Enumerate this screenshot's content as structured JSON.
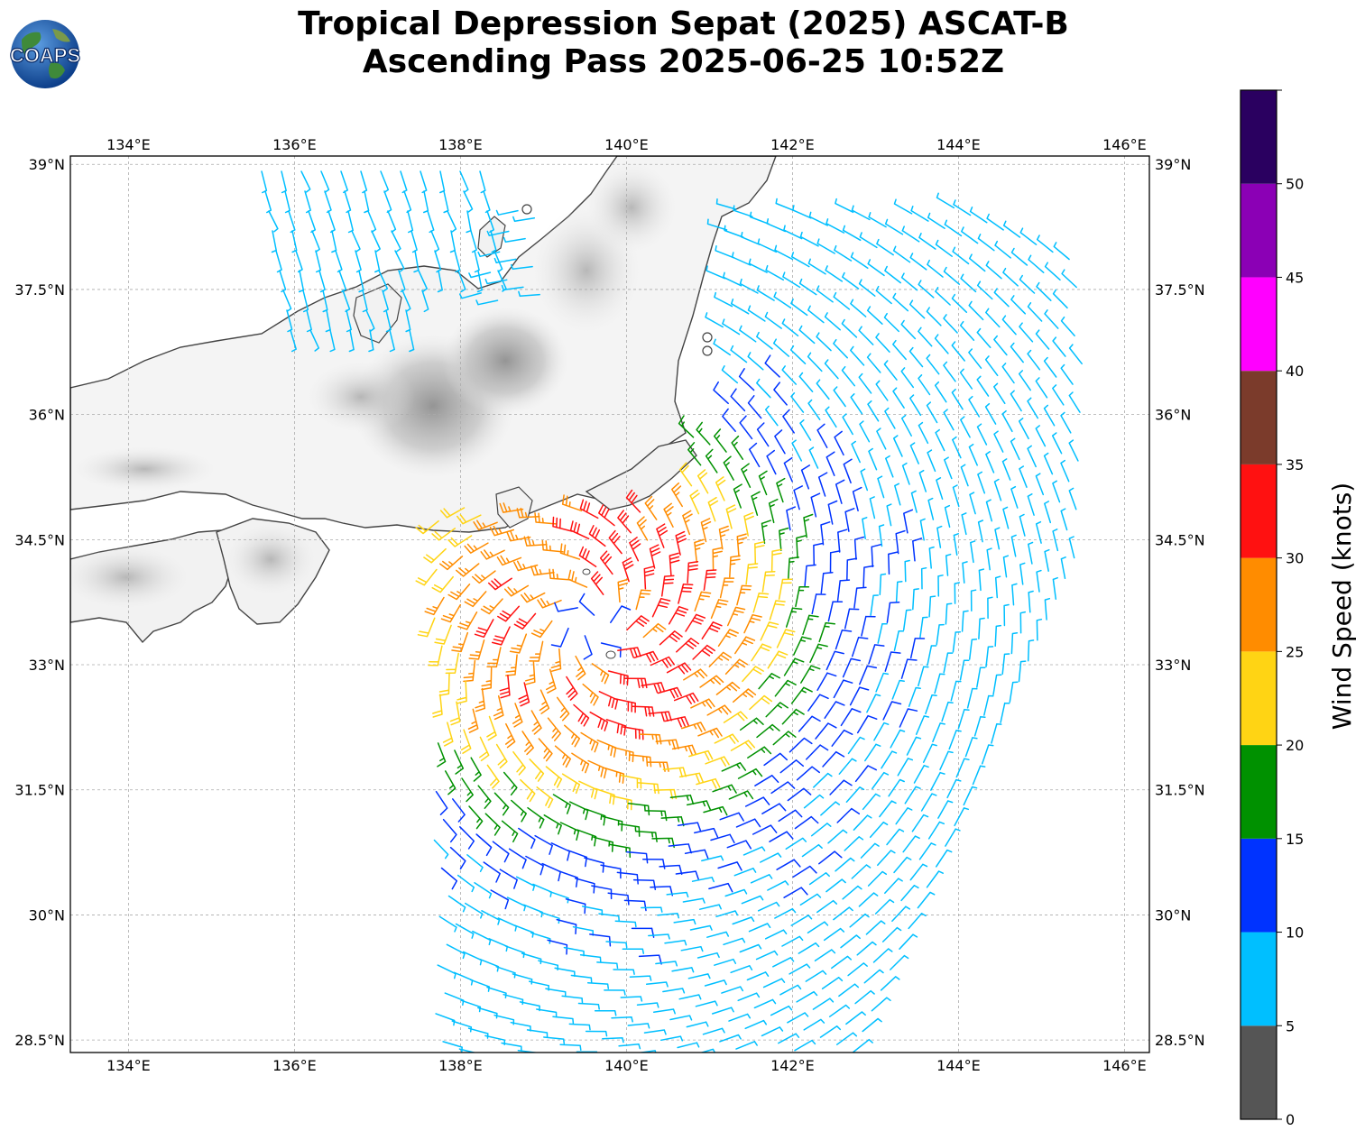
{
  "header": {
    "title_line1": "Tropical Depression Sepat (2025) ASCAT-B",
    "title_line2": "Ascending Pass 2025-06-25 10:52Z",
    "logo_text": "COAPS"
  },
  "map": {
    "lon_labels": [
      "134°E",
      "136°E",
      "138°E",
      "140°E",
      "142°E",
      "144°E",
      "146°E"
    ],
    "lat_labels": [
      "39°N",
      "37.5°N",
      "36°N",
      "34.5°N",
      "33°N",
      "31.5°N",
      "30°N",
      "28.5°N"
    ],
    "lon_values": [
      134,
      136,
      138,
      140,
      142,
      144,
      146
    ],
    "lat_values": [
      39,
      37.5,
      36,
      34.5,
      33,
      31.5,
      30,
      28.5
    ],
    "lon_range": [
      133.3,
      146.3
    ],
    "lat_range": [
      28.35,
      39.1
    ],
    "gridlines": true,
    "land_color": "#ffffff",
    "coast_color": "#444444",
    "storm_center": {
      "lon": 139.6,
      "lat": 33.5
    }
  },
  "colorbar": {
    "label": "Wind Speed (knots)",
    "ticks": [
      "0",
      "5",
      "10",
      "15",
      "20",
      "25",
      "30",
      "35",
      "40",
      "45",
      "50"
    ],
    "bins": [
      {
        "min": 0,
        "max": 5,
        "color": "#555555"
      },
      {
        "min": 5,
        "max": 10,
        "color": "#00bfff"
      },
      {
        "min": 10,
        "max": 15,
        "color": "#0033ff"
      },
      {
        "min": 15,
        "max": 20,
        "color": "#009100"
      },
      {
        "min": 20,
        "max": 25,
        "color": "#ffd414"
      },
      {
        "min": 25,
        "max": 30,
        "color": "#ff8c00"
      },
      {
        "min": 30,
        "max": 35,
        "color": "#ff1111"
      },
      {
        "min": 35,
        "max": 40,
        "color": "#7b3b2b"
      },
      {
        "min": 40,
        "max": 45,
        "color": "#ff00ff"
      },
      {
        "min": 45,
        "max": 50,
        "color": "#8b00b5"
      },
      {
        "min": 50,
        "max": 55,
        "color": "#2a0060"
      }
    ]
  }
}
